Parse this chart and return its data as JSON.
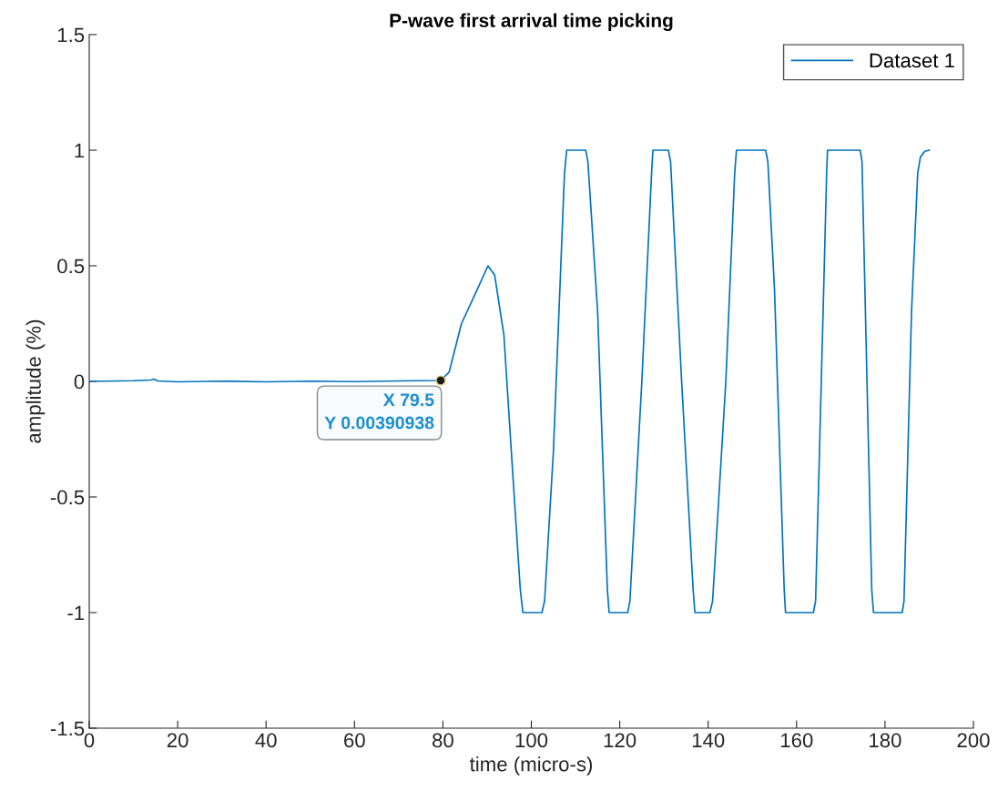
{
  "chart_data": {
    "type": "line",
    "title": "P-wave first arrival time picking",
    "xlabel": "time (micro-s)",
    "ylabel": "amplitude (%)",
    "series": [
      {
        "name": "Dataset 1",
        "color": "#0072bd",
        "x": [
          0,
          10,
          14,
          14.6,
          15.5,
          20,
          30,
          40,
          50,
          60,
          70,
          79.5,
          81.4,
          84.2,
          87.6,
          90.2,
          91.7,
          93.8,
          95.5,
          97.5,
          98.1,
          102.4,
          103,
          105,
          107.5,
          108,
          112.3,
          112.8,
          115,
          117.2,
          117.6,
          121.8,
          122.3,
          125,
          127.2,
          127.5,
          131,
          131.5,
          134,
          136.6,
          137,
          140.4,
          141,
          144,
          146,
          146.4,
          153,
          153.5,
          155,
          157.2,
          157.5,
          163.8,
          164.3,
          166,
          166.8,
          167,
          174.4,
          174.8,
          177,
          177.4,
          183.9,
          184.3,
          186,
          187.4,
          188,
          189,
          190
        ],
        "values": [
          0,
          0.003,
          0.006,
          0.01,
          0.002,
          -0.002,
          0.001,
          -0.002,
          0.001,
          -0.001,
          0.002,
          0.00390938,
          0.04,
          0.25,
          0.39,
          0.5,
          0.46,
          0.2,
          -0.31,
          -0.9,
          -1,
          -1,
          -0.95,
          -0.3,
          0.9,
          1,
          1,
          0.95,
          0.3,
          -0.9,
          -1,
          -1,
          -0.95,
          0,
          0.9,
          1,
          1,
          0.95,
          0,
          -0.9,
          -1,
          -1,
          -0.95,
          0,
          0.9,
          1,
          1,
          0.95,
          0.4,
          -0.9,
          -1,
          -1,
          -0.95,
          0.3,
          0.9,
          1,
          1,
          0.95,
          -0.9,
          -1,
          -1,
          -0.95,
          0.3,
          0.9,
          0.97,
          0.995,
          1
        ]
      }
    ],
    "xlim": [
      0,
      200
    ],
    "xticks": [
      0,
      20,
      40,
      60,
      80,
      100,
      120,
      140,
      160,
      180,
      200
    ],
    "ylim": [
      -1.5,
      1.5
    ],
    "yticks": [
      -1.5,
      -1,
      -0.5,
      0,
      0.5,
      1,
      1.5
    ],
    "annotations": [
      {
        "text": "X 79.5\nY 0.00390938",
        "x": 79.5,
        "y": 0.00390938
      }
    ],
    "legend": "top right",
    "grid": false,
    "marker": "none",
    "line_style": "solid"
  }
}
